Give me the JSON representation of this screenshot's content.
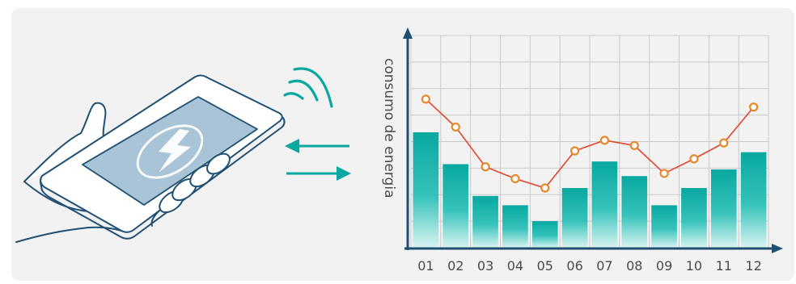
{
  "colors": {
    "panel_bg": "#f2f2f2",
    "outline": "#1f4f73",
    "screen_fill": "#a9c4d6",
    "teal": "#08a8a0",
    "line_red": "#e0452f",
    "marker_orange": "#e58a2a",
    "axis": "#1f4f73",
    "grid": "#c9c9c9"
  },
  "icons": {
    "phone": "smartphone-hand-icon",
    "charge": "lightning-charge-icon",
    "signal": "wireless-signal-icon",
    "arrow_in": "arrow-left-icon",
    "arrow_out": "arrow-right-icon"
  },
  "chart_data": {
    "type": "bar",
    "ylabel": "consumo de energia",
    "categories": [
      "01",
      "02",
      "03",
      "04",
      "05",
      "06",
      "07",
      "08",
      "09",
      "10",
      "11",
      "12"
    ],
    "bar_values": [
      4.35,
      3.15,
      1.95,
      1.6,
      1.0,
      2.25,
      3.25,
      2.7,
      1.6,
      2.25,
      2.95,
      3.6
    ],
    "line_values": [
      5.6,
      4.55,
      3.05,
      2.6,
      2.25,
      3.65,
      4.05,
      3.85,
      2.8,
      3.35,
      3.95,
      5.3
    ],
    "ylim": [
      0,
      8
    ],
    "grid": true
  }
}
